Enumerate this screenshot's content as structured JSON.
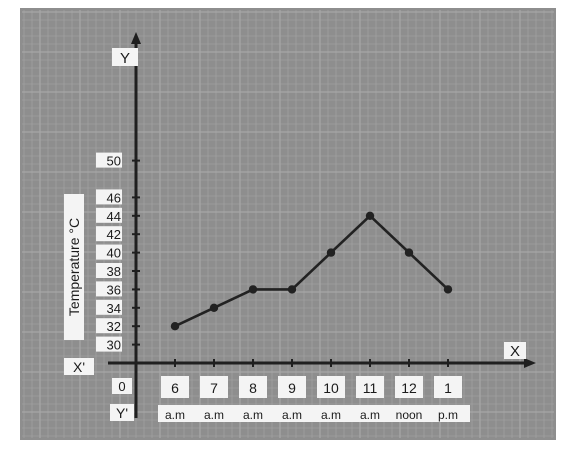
{
  "chart_data": {
    "type": "line",
    "ylabel": "Temperature °C",
    "axis_labels": {
      "y_top": "Y",
      "y_bottom": "Y'",
      "x_right": "X",
      "x_left": "X'",
      "origin": "0"
    },
    "x_ticks": [
      {
        "top": "6",
        "bottom": "a.m"
      },
      {
        "top": "7",
        "bottom": "a.m"
      },
      {
        "top": "8",
        "bottom": "a.m"
      },
      {
        "top": "9",
        "bottom": "a.m"
      },
      {
        "top": "10",
        "bottom": "a.m"
      },
      {
        "top": "11",
        "bottom": "a.m"
      },
      {
        "top": "12",
        "bottom": "noon"
      },
      {
        "top": "1",
        "bottom": "p.m"
      }
    ],
    "y_ticks": [
      30,
      32,
      34,
      36,
      38,
      40,
      42,
      44,
      46,
      50
    ],
    "values": [
      32,
      34,
      36,
      36,
      40,
      44,
      40,
      36
    ],
    "grid": true,
    "colors": {
      "background": "#8e8e8e",
      "grid": "#a6a6a6",
      "line": "#222222"
    }
  }
}
